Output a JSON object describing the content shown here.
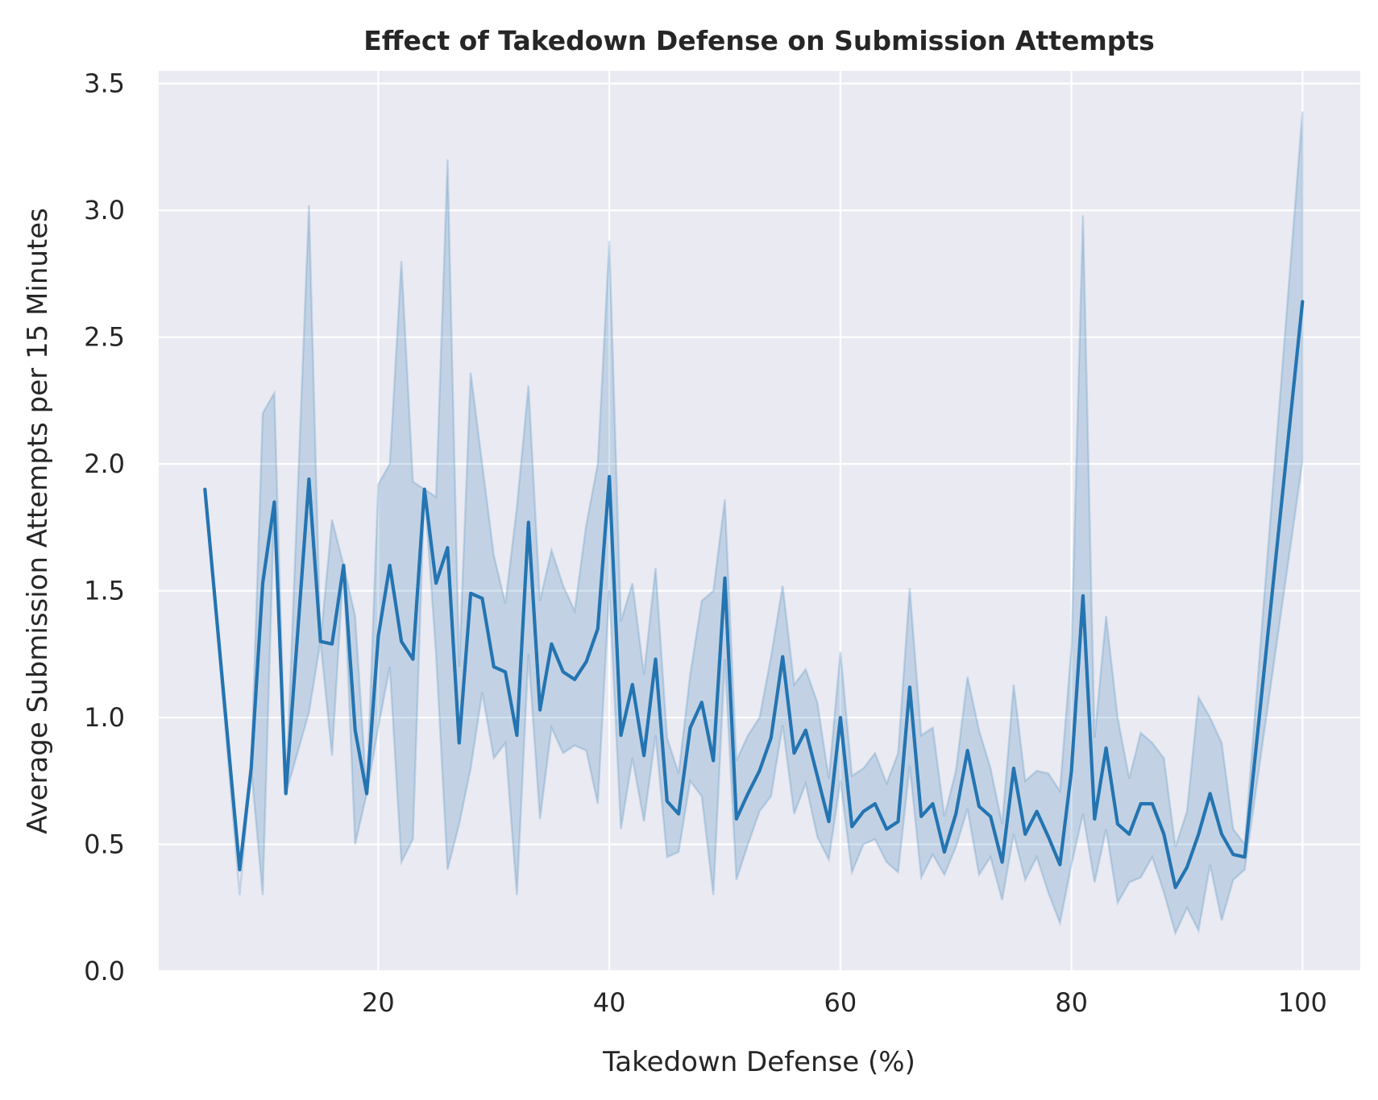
{
  "colors": {
    "plot_background": "#eaeaf2",
    "grid": "#ffffff",
    "line": "#2474b1",
    "band": "#2474b1",
    "text": "#262626"
  },
  "chart_data": {
    "type": "line",
    "title": "Effect of Takedown Defense on Submission Attempts",
    "xlabel": "Takedown Defense (%)",
    "ylabel": "Average Submission Attempts per 15 Minutes",
    "xlim": [
      1,
      105
    ],
    "ylim": [
      0,
      3.55
    ],
    "x_ticks": [
      20,
      40,
      60,
      80,
      100
    ],
    "x_tick_labels": [
      "20",
      "40",
      "60",
      "80",
      "100"
    ],
    "y_ticks": [
      0,
      0.5,
      1.0,
      1.5,
      2.0,
      2.5,
      3.0,
      3.5
    ],
    "y_tick_labels": [
      "0.0",
      "0.5",
      "1.0",
      "1.5",
      "2.0",
      "2.5",
      "3.0",
      "3.5"
    ],
    "grid": true,
    "legend": "none",
    "series": [
      {
        "x": [
          5,
          8,
          9,
          10,
          11,
          12,
          14,
          15,
          16,
          17,
          18,
          19,
          20,
          21,
          22,
          23,
          24,
          25,
          26,
          27,
          28,
          29,
          30,
          31,
          32,
          33,
          34,
          35,
          36,
          37,
          38,
          39,
          40,
          41,
          42,
          43,
          44,
          45,
          46,
          47,
          48,
          49,
          50,
          51,
          52,
          53,
          54,
          55,
          56,
          57,
          58,
          59,
          60,
          61,
          62,
          63,
          64,
          65,
          66,
          67,
          68,
          69,
          70,
          71,
          72,
          73,
          74,
          75,
          76,
          77,
          78,
          79,
          80,
          81,
          82,
          83,
          84,
          85,
          86,
          87,
          88,
          89,
          90,
          91,
          92,
          93,
          94,
          95,
          100
        ],
        "y": [
          1.9,
          0.4,
          0.8,
          1.53,
          1.85,
          0.7,
          1.94,
          1.3,
          1.29,
          1.6,
          0.95,
          0.7,
          1.32,
          1.6,
          1.3,
          1.23,
          1.9,
          1.53,
          1.67,
          0.9,
          1.49,
          1.47,
          1.2,
          1.18,
          0.93,
          1.77,
          1.03,
          1.29,
          1.18,
          1.15,
          1.22,
          1.35,
          1.95,
          0.93,
          1.13,
          0.85,
          1.23,
          0.67,
          0.62,
          0.96,
          1.06,
          0.83,
          1.55,
          0.6,
          0.7,
          0.79,
          0.92,
          1.24,
          0.86,
          0.95,
          0.77,
          0.59,
          1.0,
          0.57,
          0.63,
          0.66,
          0.56,
          0.59,
          1.12,
          0.61,
          0.66,
          0.47,
          0.62,
          0.87,
          0.65,
          0.61,
          0.43,
          0.8,
          0.54,
          0.63,
          0.53,
          0.42,
          0.79,
          1.48,
          0.6,
          0.88,
          0.58,
          0.54,
          0.66,
          0.66,
          0.54,
          0.33,
          0.41,
          0.54,
          0.7,
          0.54,
          0.46,
          0.45,
          2.64
        ],
        "ci_low": [
          1.9,
          0.3,
          0.8,
          0.3,
          1.85,
          0.7,
          1.02,
          1.3,
          0.85,
          1.6,
          0.5,
          0.7,
          0.96,
          1.2,
          0.43,
          0.52,
          1.9,
          1.25,
          0.4,
          0.58,
          0.8,
          1.1,
          0.84,
          0.9,
          0.3,
          1.25,
          0.6,
          0.96,
          0.86,
          0.89,
          0.87,
          0.66,
          1.5,
          0.56,
          0.84,
          0.59,
          0.93,
          0.45,
          0.47,
          0.75,
          0.69,
          0.3,
          1.23,
          0.36,
          0.5,
          0.63,
          0.69,
          0.97,
          0.62,
          0.74,
          0.53,
          0.44,
          0.75,
          0.39,
          0.5,
          0.52,
          0.43,
          0.39,
          0.81,
          0.37,
          0.46,
          0.38,
          0.49,
          0.64,
          0.38,
          0.45,
          0.28,
          0.54,
          0.36,
          0.45,
          0.31,
          0.19,
          0.42,
          0.62,
          0.35,
          0.56,
          0.27,
          0.35,
          0.37,
          0.45,
          0.31,
          0.15,
          0.25,
          0.16,
          0.42,
          0.2,
          0.36,
          0.4,
          2.01
        ],
        "ci_high": [
          1.9,
          0.3,
          0.8,
          2.2,
          2.28,
          0.7,
          3.02,
          1.3,
          1.78,
          1.6,
          1.4,
          0.7,
          1.92,
          2.0,
          2.8,
          1.93,
          1.9,
          1.87,
          3.2,
          1.2,
          2.36,
          2.0,
          1.64,
          1.45,
          1.83,
          2.31,
          1.46,
          1.66,
          1.52,
          1.42,
          1.76,
          2.0,
          2.88,
          1.38,
          1.53,
          1.17,
          1.59,
          0.92,
          0.78,
          1.17,
          1.46,
          1.5,
          1.86,
          0.83,
          0.93,
          1.0,
          1.24,
          1.52,
          1.13,
          1.19,
          1.06,
          0.76,
          1.26,
          0.77,
          0.8,
          0.86,
          0.74,
          0.86,
          1.51,
          0.93,
          0.96,
          0.61,
          0.79,
          1.16,
          0.95,
          0.8,
          0.58,
          1.13,
          0.75,
          0.79,
          0.78,
          0.71,
          1.28,
          2.98,
          0.92,
          1.4,
          1.0,
          0.76,
          0.94,
          0.9,
          0.84,
          0.49,
          0.63,
          1.08,
          1.0,
          0.9,
          0.56,
          0.5,
          3.39
        ]
      }
    ]
  }
}
